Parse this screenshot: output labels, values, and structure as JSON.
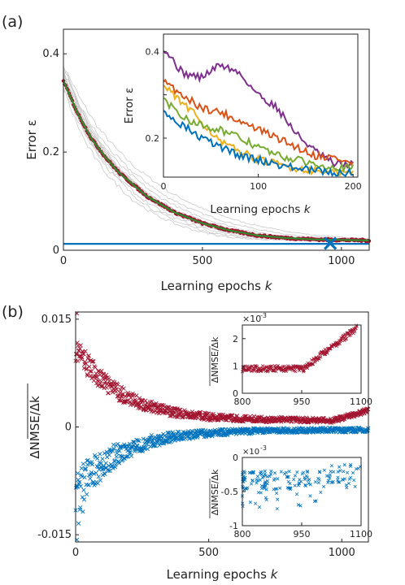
{
  "panel_labels": {
    "a": "(a)",
    "b": "(b)"
  },
  "chart_data": [
    {
      "id": "a-main",
      "type": "line",
      "xlabel": "Learning epochs k",
      "ylabel": "Error ε",
      "xlim": [
        0,
        1100
      ],
      "ylim": [
        0,
        0.45
      ],
      "xticks": [
        0,
        500,
        1000
      ],
      "yticks": [
        0,
        0.2,
        0.4
      ],
      "xtick_labels": [
        "0",
        "500",
        "1000"
      ],
      "ytick_labels": [
        "0",
        "0.2",
        "0.4"
      ],
      "colors": {
        "gray": "#c8c8c8",
        "red": "#a2142f",
        "green": "#2e8b2e",
        "blue": "#0072bd"
      },
      "gray_traces": 14,
      "mean_curve": {
        "x": [
          0,
          50,
          100,
          150,
          200,
          300,
          400,
          500,
          600,
          700,
          800,
          900,
          1000,
          1100
        ],
        "y": [
          0.345,
          0.28,
          0.228,
          0.19,
          0.158,
          0.11,
          0.077,
          0.055,
          0.04,
          0.03,
          0.025,
          0.022,
          0.021,
          0.02
        ]
      },
      "baseline": 0.013,
      "marker": {
        "x": 960,
        "y": 0.014
      }
    },
    {
      "id": "a-inset",
      "type": "line",
      "xlabel": "Learning epochs k",
      "ylabel": "Error ε",
      "xlim": [
        0,
        205
      ],
      "ylim": [
        0.11,
        0.44
      ],
      "xticks": [
        0,
        100,
        200
      ],
      "yticks": [
        0.2,
        0.3,
        0.4
      ],
      "xtick_labels": [
        "0",
        "100",
        "200"
      ],
      "ytick_labels": [
        "0.2",
        "",
        "0.4"
      ],
      "series": [
        {
          "color": "#7e2f8e",
          "x": [
            0,
            20,
            40,
            60,
            80,
            100,
            120,
            140,
            160,
            180,
            200
          ],
          "y": [
            0.41,
            0.35,
            0.34,
            0.37,
            0.35,
            0.3,
            0.27,
            0.21,
            0.17,
            0.14,
            0.14
          ]
        },
        {
          "color": "#d95319",
          "x": [
            0,
            20,
            40,
            60,
            80,
            100,
            120,
            140,
            160,
            180,
            200
          ],
          "y": [
            0.33,
            0.3,
            0.27,
            0.26,
            0.24,
            0.22,
            0.2,
            0.18,
            0.16,
            0.155,
            0.14
          ]
        },
        {
          "color": "#edb120",
          "x": [
            0,
            20,
            40,
            60,
            80,
            100,
            120,
            140,
            160,
            180,
            200
          ],
          "y": [
            0.32,
            0.28,
            0.24,
            0.19,
            0.17,
            0.15,
            0.14,
            0.13,
            0.125,
            0.12,
            0.12
          ]
        },
        {
          "color": "#77ac30",
          "x": [
            0,
            20,
            40,
            60,
            80,
            100,
            120,
            140,
            160,
            180,
            200
          ],
          "y": [
            0.29,
            0.25,
            0.23,
            0.22,
            0.2,
            0.18,
            0.16,
            0.15,
            0.14,
            0.135,
            0.13
          ]
        },
        {
          "color": "#0072bd",
          "x": [
            0,
            20,
            40,
            60,
            80,
            100,
            120,
            140,
            160,
            180,
            200
          ],
          "y": [
            0.26,
            0.23,
            0.2,
            0.18,
            0.16,
            0.15,
            0.14,
            0.13,
            0.125,
            0.12,
            0.12
          ]
        }
      ]
    },
    {
      "id": "b-main",
      "type": "scatter",
      "ylabel": "ΔNMSE/Δk",
      "xlabel": "Learning epochs k",
      "xlim": [
        0,
        1100
      ],
      "ylim": [
        -0.016,
        0.016
      ],
      "xticks": [
        0,
        500,
        1000
      ],
      "yticks": [
        -0.015,
        0,
        0.015
      ],
      "xtick_labels": [
        "0",
        "500",
        "1000"
      ],
      "ytick_labels": [
        "-0.015",
        "0",
        "0.015"
      ],
      "series": [
        {
          "color": "#a2142f",
          "trend": "positive-decay",
          "start": 0.011,
          "tau": 170,
          "floor": 0.0009
        },
        {
          "color": "#0072bd",
          "trend": "negative-decay",
          "start": -0.009,
          "tau": 170,
          "floor": -0.0004
        }
      ]
    },
    {
      "id": "b-inset-top",
      "type": "scatter",
      "ylabel": "ΔNMSE/Δk",
      "exponent": "×10⁻³",
      "xlim": [
        800,
        1100
      ],
      "ylim": [
        0,
        2.5
      ],
      "xticks": [
        800,
        950,
        1100
      ],
      "yticks": [
        0,
        1,
        2
      ],
      "xtick_labels": [
        "800",
        "950",
        "1100"
      ],
      "ytick_labels": [
        "0",
        "1",
        "2"
      ],
      "color": "#a2142f"
    },
    {
      "id": "b-inset-bottom",
      "type": "scatter",
      "ylabel": "ΔNMSE/Δk",
      "exponent": "×10⁻³",
      "xlim": [
        800,
        1100
      ],
      "ylim": [
        -1,
        0
      ],
      "xticks": [
        800,
        950,
        1100
      ],
      "yticks": [
        -1,
        -0.5,
        0
      ],
      "xtick_labels": [
        "800",
        "950",
        "1100"
      ],
      "ytick_labels": [
        "-1",
        "-0.5",
        "0"
      ],
      "color": "#0072bd"
    }
  ]
}
